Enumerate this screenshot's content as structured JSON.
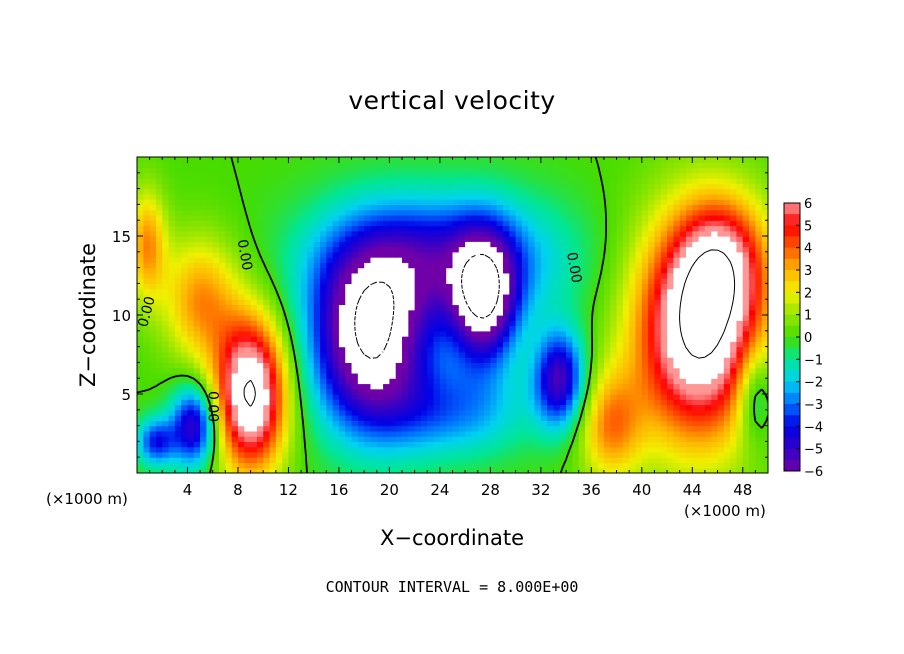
{
  "chart_data": {
    "type": "heatmap",
    "title": "vertical velocity",
    "xlabel": "X−coordinate",
    "ylabel": "Z−coordinate",
    "x_unit": "(×1000 m)",
    "y_unit": "(×1000 m)",
    "footer": "CONTOUR INTERVAL = 8.000E+00",
    "xlim": [
      0,
      50
    ],
    "ylim": [
      0,
      20
    ],
    "x_ticks": [
      4,
      8,
      12,
      16,
      20,
      24,
      28,
      32,
      36,
      40,
      44,
      48
    ],
    "y_ticks": [
      5,
      10,
      15
    ],
    "x_tick_labels": [
      "4",
      "8",
      "12",
      "16",
      "20",
      "24",
      "28",
      "32",
      "36",
      "40",
      "44",
      "48"
    ],
    "y_tick_labels": [
      "5",
      "10",
      "15"
    ],
    "colorbar": {
      "range": [
        -6,
        6
      ],
      "ticks": [
        6,
        5,
        4,
        3,
        2,
        1,
        0,
        -1,
        -2,
        -3,
        -4,
        -5,
        -6
      ],
      "tick_labels": [
        "6",
        "5",
        "4",
        "3",
        "2",
        "1",
        "0",
        "−1",
        "−2",
        "−3",
        "−4",
        "−5",
        "−6"
      ]
    },
    "contour_labels": [
      {
        "text": "0.00",
        "x": 0.8,
        "z": 10.2,
        "angle": -75
      },
      {
        "text": "0.00",
        "x": 8.5,
        "z": 13.8,
        "angle": 80
      },
      {
        "text": "0.00",
        "x": 34.6,
        "z": 13.0,
        "angle": 80
      },
      {
        "text": "0.00",
        "x": 6.0,
        "z": 4.2,
        "angle": 90
      }
    ],
    "features": [
      {
        "x": 9.0,
        "z": 5.0,
        "w": 1.1,
        "hw": 2.8,
        "hz": 4.8
      },
      {
        "x": 44.5,
        "z": 9.0,
        "w": 1.1,
        "hw": 5.0,
        "hz": 7.0
      },
      {
        "x": 37.5,
        "z": 3.0,
        "w": 0.45,
        "hw": 2.5,
        "hz": 3.5
      },
      {
        "x": 46.5,
        "z": 13.5,
        "w": 0.5,
        "hw": 3.5,
        "hz": 4.0
      },
      {
        "x": 0.8,
        "z": 14.5,
        "w": 0.45,
        "hw": 1.5,
        "hz": 3.5
      },
      {
        "x": 5.0,
        "z": 11.0,
        "w": 0.45,
        "hw": 3.0,
        "hz": 4.0
      },
      {
        "x": 18.5,
        "z": 8.5,
        "w": -1.05,
        "hw": 4.5,
        "hz": 5.5
      },
      {
        "x": 27.5,
        "z": 11.0,
        "w": -0.9,
        "hw": 2.5,
        "hz": 4.0
      },
      {
        "x": 24.0,
        "z": 13.5,
        "w": -0.6,
        "hw": 9.0,
        "hz": 4.0
      },
      {
        "x": 33.5,
        "z": 6.0,
        "w": -0.7,
        "hw": 2.0,
        "hz": 3.0
      },
      {
        "x": 4.5,
        "z": 3.0,
        "w": -0.7,
        "hw": 1.8,
        "hz": 2.5
      },
      {
        "x": 1.5,
        "z": 2.0,
        "w": -0.5,
        "hw": 1.5,
        "hz": 1.5
      },
      {
        "x": 25.0,
        "z": 4.0,
        "w": -0.35,
        "hw": 6.0,
        "hz": 3.0
      },
      {
        "x": 49.0,
        "z": 5.0,
        "w": -0.35,
        "hw": 1.5,
        "hz": 3.0
      }
    ]
  }
}
